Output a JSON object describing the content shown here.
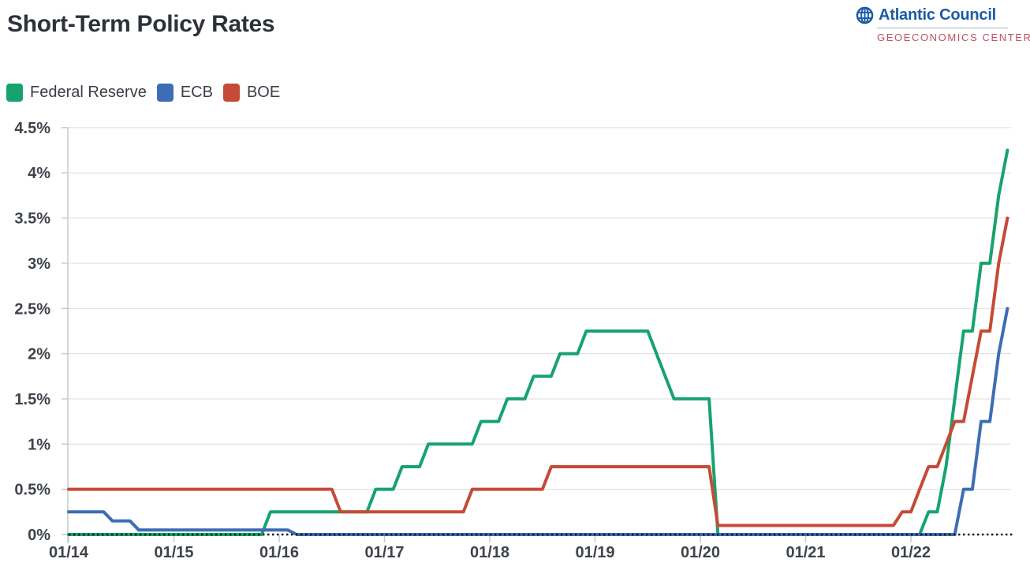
{
  "header": {
    "title": "Short-Term Policy Rates"
  },
  "logo": {
    "name": "Atlantic Council",
    "subtitle": "GEOECONOMICS CENTER",
    "globe_icon_color": "#1b5ca3",
    "name_color": "#1b5ca3",
    "subtitle_color": "#c05061"
  },
  "legend": {
    "items": [
      {
        "label": "Federal Reserve"
      },
      {
        "label": "ECB"
      },
      {
        "label": "BOE"
      }
    ]
  },
  "chart_data": {
    "type": "line",
    "title": "Short-Term Policy Rates",
    "x_start": "2014-01",
    "x_end": "2022-12",
    "x_tick_labels": [
      "01/14",
      "01/15",
      "01/16",
      "01/17",
      "01/18",
      "01/19",
      "01/20",
      "01/21",
      "01/22"
    ],
    "y_tick_labels": [
      "4.5%",
      "4%",
      "3.5%",
      "3%",
      "2.5%",
      "2%",
      "1.5%",
      "1%",
      "0.5%",
      "0%"
    ],
    "y_tick_values": [
      4.5,
      4,
      3.5,
      3,
      2.5,
      2,
      1.5,
      1,
      0.5,
      0
    ],
    "ylim": [
      0,
      4.5
    ],
    "unit": "%",
    "grid": "horizontal-only",
    "zero_line": {
      "style": "dotted",
      "color": "#15181c"
    },
    "legend_position": "top-left",
    "series": [
      {
        "name": "Federal Reserve",
        "color": "#17a36e",
        "points": [
          [
            "2014-01",
            0
          ],
          [
            "2015-12",
            0.25
          ],
          [
            "2016-12",
            0.5
          ],
          [
            "2017-03",
            0.75
          ],
          [
            "2017-06",
            1.0
          ],
          [
            "2017-12",
            1.25
          ],
          [
            "2018-03",
            1.5
          ],
          [
            "2018-06",
            1.75
          ],
          [
            "2018-09",
            2.0
          ],
          [
            "2018-12",
            2.25
          ],
          [
            "2019-08",
            2.0
          ],
          [
            "2019-09",
            1.75
          ],
          [
            "2019-10",
            1.5
          ],
          [
            "2020-03",
            0
          ],
          [
            "2022-03",
            0.25
          ],
          [
            "2022-05",
            0.75
          ],
          [
            "2022-06",
            1.5
          ],
          [
            "2022-07",
            2.25
          ],
          [
            "2022-09",
            3.0
          ],
          [
            "2022-11",
            3.75
          ],
          [
            "2022-12",
            4.25
          ]
        ]
      },
      {
        "name": "ECB",
        "color": "#3e6db5",
        "points": [
          [
            "2014-01",
            0.25
          ],
          [
            "2014-06",
            0.15
          ],
          [
            "2014-09",
            0.05
          ],
          [
            "2016-03",
            0
          ],
          [
            "2022-07",
            0.5
          ],
          [
            "2022-09",
            1.25
          ],
          [
            "2022-11",
            2.0
          ],
          [
            "2022-12",
            2.5
          ]
        ]
      },
      {
        "name": "BOE",
        "color": "#c54b37",
        "points": [
          [
            "2014-01",
            0.5
          ],
          [
            "2016-08",
            0.25
          ],
          [
            "2017-11",
            0.5
          ],
          [
            "2018-08",
            0.75
          ],
          [
            "2020-03",
            0.1
          ],
          [
            "2021-12",
            0.25
          ],
          [
            "2022-02",
            0.5
          ],
          [
            "2022-03",
            0.75
          ],
          [
            "2022-05",
            1.0
          ],
          [
            "2022-06",
            1.25
          ],
          [
            "2022-08",
            1.75
          ],
          [
            "2022-09",
            2.25
          ],
          [
            "2022-11",
            3.0
          ],
          [
            "2022-12",
            3.5
          ]
        ]
      }
    ]
  }
}
